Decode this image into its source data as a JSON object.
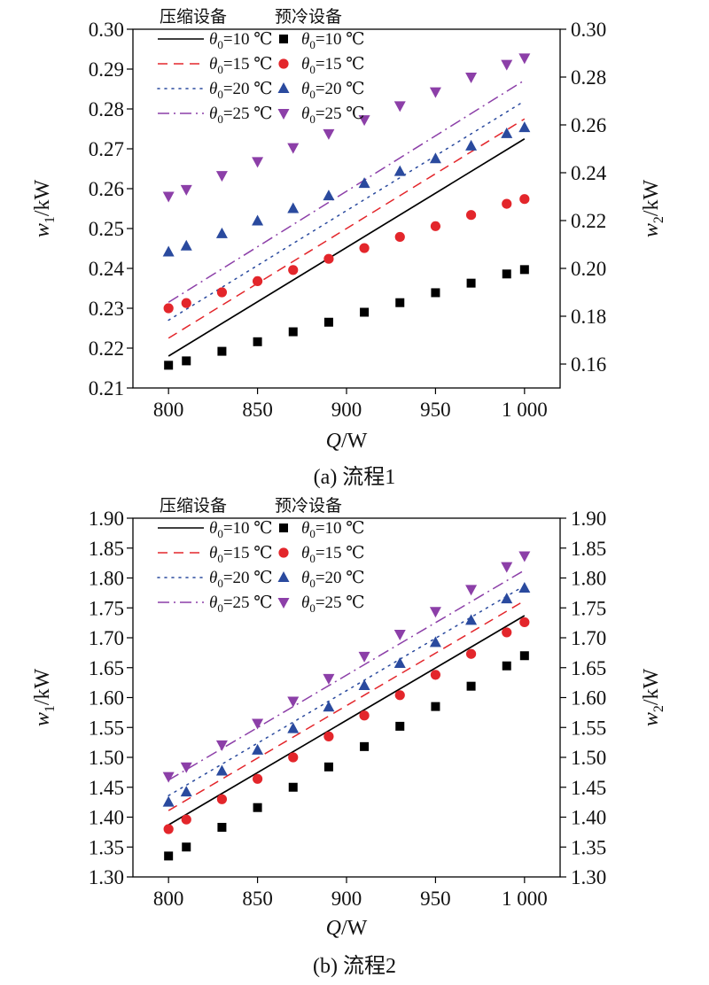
{
  "figure_captions": [
    "(a) 流程1",
    "(b) 流程2"
  ],
  "chart_data": [
    {
      "type": "scatter",
      "title": "(a) 流程1",
      "xlabel": "Q/W",
      "ylabel": "w1/kW",
      "y2label": "w2/kW",
      "xlim": [
        780,
        1020
      ],
      "ylim": [
        0.21,
        0.3
      ],
      "y2lim": [
        0.15,
        0.3
      ],
      "x_ticks": [
        800,
        850,
        900,
        950,
        1000
      ],
      "x_tick_labels": [
        "800",
        "850",
        "900",
        "950",
        "1 000"
      ],
      "y_ticks": [
        "0.21",
        "0.22",
        "0.23",
        "0.24",
        "0.25",
        "0.26",
        "0.27",
        "0.28",
        "0.29",
        "0.30"
      ],
      "y2_ticks": [
        "0.16",
        "0.18",
        "0.20",
        "0.22",
        "0.24",
        "0.26",
        "0.28",
        "0.30"
      ],
      "legend_headers": [
        "压缩设备",
        "预冷设备"
      ],
      "legend_labels": [
        "θ0=10 ℃",
        "θ0=15 ℃",
        "θ0=20 ℃",
        "θ0=25 ℃"
      ],
      "legend_position": "top-left",
      "grid": false,
      "colors": [
        "#000000",
        "#e3262b",
        "#2a4a9e",
        "#8c3fa8"
      ],
      "lines": [
        {
          "name": "压缩设备 θ0=10 ℃",
          "axis": "y1",
          "style": "solid",
          "x": [
            800,
            1000
          ],
          "y": [
            0.218,
            0.2725
          ]
        },
        {
          "name": "压缩设备 θ0=15 ℃",
          "axis": "y1",
          "style": "dash",
          "x": [
            800,
            1000
          ],
          "y": [
            0.2225,
            0.2775
          ]
        },
        {
          "name": "压缩设备 θ0=20 ℃",
          "axis": "y1",
          "style": "dot",
          "x": [
            800,
            1000
          ],
          "y": [
            0.227,
            0.282
          ]
        },
        {
          "name": "压缩设备 θ0=25 ℃",
          "axis": "y1",
          "style": "dashdot",
          "x": [
            800,
            1000
          ],
          "y": [
            0.2315,
            0.2872
          ]
        }
      ],
      "points": [
        {
          "name": "预冷设备 θ0=10 ℃",
          "axis": "y1",
          "marker": "square",
          "x": [
            800,
            810,
            830,
            850,
            870,
            890,
            910,
            930,
            950,
            970,
            990,
            1000
          ],
          "y": [
            0.2157,
            0.2168,
            0.2192,
            0.2216,
            0.2241,
            0.2265,
            0.229,
            0.2314,
            0.2339,
            0.2363,
            0.2386,
            0.2397
          ]
        },
        {
          "name": "预冷设备 θ0=15 ℃",
          "axis": "y1",
          "marker": "circle",
          "x": [
            800,
            810,
            830,
            850,
            870,
            890,
            910,
            930,
            950,
            970,
            990,
            1000
          ],
          "y": [
            0.23,
            0.2313,
            0.234,
            0.2368,
            0.2396,
            0.2424,
            0.2451,
            0.2479,
            0.2506,
            0.2534,
            0.2562,
            0.2574
          ]
        },
        {
          "name": "预冷设备 θ0=20 ℃",
          "axis": "y1",
          "marker": "triangle-up",
          "x": [
            800,
            810,
            830,
            850,
            870,
            890,
            910,
            930,
            950,
            970,
            990,
            1000
          ],
          "y": [
            0.2441,
            0.2456,
            0.2487,
            0.2519,
            0.255,
            0.2582,
            0.2613,
            0.2643,
            0.2675,
            0.2707,
            0.2738,
            0.2753
          ]
        },
        {
          "name": "预冷设备 θ0=25 ℃",
          "axis": "y1",
          "marker": "triangle-down",
          "x": [
            800,
            810,
            830,
            850,
            870,
            890,
            910,
            930,
            950,
            970,
            990,
            1000
          ],
          "y": [
            0.2581,
            0.2598,
            0.2633,
            0.2668,
            0.2703,
            0.2738,
            0.2773,
            0.2808,
            0.2843,
            0.288,
            0.2912,
            0.2928
          ]
        }
      ]
    },
    {
      "type": "scatter",
      "title": "(b) 流程2",
      "xlabel": "Q/W",
      "ylabel": "w1/kW",
      "y2label": "w2/kW",
      "xlim": [
        780,
        1020
      ],
      "ylim": [
        1.3,
        1.9
      ],
      "y2lim": [
        1.3,
        1.9
      ],
      "x_ticks": [
        800,
        850,
        900,
        950,
        1000
      ],
      "x_tick_labels": [
        "800",
        "850",
        "900",
        "950",
        "1 000"
      ],
      "y_ticks": [
        "1.30",
        "1.35",
        "1.40",
        "1.45",
        "1.50",
        "1.55",
        "1.60",
        "1.65",
        "1.70",
        "1.75",
        "1.80",
        "1.85",
        "1.90"
      ],
      "y2_ticks": [
        "1.30",
        "1.35",
        "1.40",
        "1.45",
        "1.50",
        "1.55",
        "1.60",
        "1.65",
        "1.70",
        "1.75",
        "1.80",
        "1.85",
        "1.90"
      ],
      "legend_headers": [
        "压缩设备",
        "预冷设备"
      ],
      "legend_labels": [
        "θ0=10 ℃",
        "θ0=15 ℃",
        "θ0=20 ℃",
        "θ0=25 ℃"
      ],
      "legend_position": "top-left",
      "grid": false,
      "colors": [
        "#000000",
        "#e3262b",
        "#2a4a9e",
        "#8c3fa8"
      ],
      "lines": [
        {
          "name": "压缩设备 θ0=10 ℃",
          "axis": "y1",
          "style": "solid",
          "x": [
            800,
            1000
          ],
          "y": [
            1.387,
            1.737
          ]
        },
        {
          "name": "压缩设备 θ0=15 ℃",
          "axis": "y1",
          "style": "dash",
          "x": [
            800,
            1000
          ],
          "y": [
            1.411,
            1.762
          ]
        },
        {
          "name": "压缩设备 θ0=20 ℃",
          "axis": "y1",
          "style": "dot",
          "x": [
            800,
            1000
          ],
          "y": [
            1.436,
            1.787
          ]
        },
        {
          "name": "压缩设备 θ0=25 ℃",
          "axis": "y1",
          "style": "dashdot",
          "x": [
            800,
            1000
          ],
          "y": [
            1.462,
            1.813
          ]
        }
      ],
      "points": [
        {
          "name": "预冷设备 θ0=10 ℃",
          "axis": "y1",
          "marker": "square",
          "x": [
            800,
            810,
            830,
            850,
            870,
            890,
            910,
            930,
            950,
            970,
            990,
            1000
          ],
          "y": [
            1.335,
            1.35,
            1.383,
            1.416,
            1.45,
            1.484,
            1.518,
            1.552,
            1.585,
            1.619,
            1.653,
            1.67
          ]
        },
        {
          "name": "预冷设备 θ0=15 ℃",
          "axis": "y1",
          "marker": "circle",
          "x": [
            800,
            810,
            830,
            850,
            870,
            890,
            910,
            930,
            950,
            970,
            990,
            1000
          ],
          "y": [
            1.38,
            1.396,
            1.43,
            1.464,
            1.5,
            1.535,
            1.57,
            1.604,
            1.638,
            1.673,
            1.709,
            1.726
          ]
        },
        {
          "name": "预冷设备 θ0=20 ℃",
          "axis": "y1",
          "marker": "triangle-up",
          "x": [
            800,
            810,
            830,
            850,
            870,
            890,
            910,
            930,
            950,
            970,
            990,
            1000
          ],
          "y": [
            1.425,
            1.442,
            1.477,
            1.512,
            1.548,
            1.584,
            1.62,
            1.657,
            1.692,
            1.729,
            1.765,
            1.783
          ]
        },
        {
          "name": "预冷设备 θ0=25 ℃",
          "axis": "y1",
          "marker": "triangle-down",
          "x": [
            800,
            810,
            830,
            850,
            870,
            890,
            910,
            930,
            950,
            970,
            990,
            1000
          ],
          "y": [
            1.468,
            1.484,
            1.521,
            1.557,
            1.594,
            1.632,
            1.669,
            1.706,
            1.744,
            1.781,
            1.819,
            1.837
          ]
        }
      ]
    }
  ]
}
